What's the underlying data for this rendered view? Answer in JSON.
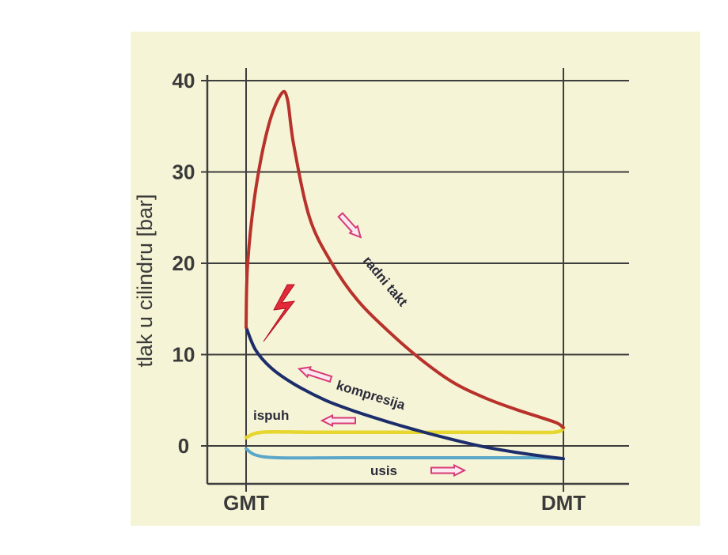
{
  "chart_data": {
    "type": "line",
    "ylabel": "tlak u cilindru [bar]",
    "ylim": [
      -4.5,
      41
    ],
    "yticks": [
      0,
      10,
      20,
      30,
      40
    ],
    "xtick_labels": [
      "GMT",
      "DMT"
    ],
    "grid": true,
    "series": [
      {
        "name": "radni takt",
        "color": "#b8322c",
        "x": [
          0.0,
          0.005,
          0.03,
          0.07,
          0.11,
          0.13,
          0.15,
          0.2,
          0.27,
          0.35,
          0.45,
          0.55,
          0.65,
          0.75,
          0.85,
          0.93,
          0.98,
          1.0
        ],
        "y": [
          13.0,
          20.0,
          28.0,
          35.0,
          38.5,
          38.0,
          33.0,
          25.0,
          20.0,
          16.0,
          12.5,
          9.5,
          7.0,
          5.3,
          4.0,
          3.1,
          2.5,
          2.0
        ]
      },
      {
        "name": "kompresija",
        "color": "#1c2d6b",
        "x": [
          0.0,
          0.03,
          0.08,
          0.15,
          0.25,
          0.35,
          0.45,
          0.55,
          0.65,
          0.75,
          0.85,
          0.93,
          1.0
        ],
        "y": [
          13.0,
          10.5,
          8.5,
          6.8,
          5.0,
          3.7,
          2.6,
          1.6,
          0.7,
          -0.1,
          -0.7,
          -1.1,
          -1.4
        ]
      },
      {
        "name": "ispuh",
        "color": "#e6d630",
        "x": [
          0.0,
          0.05,
          0.2,
          0.4,
          0.6,
          0.8,
          0.97,
          1.0
        ],
        "y": [
          0.9,
          1.5,
          1.5,
          1.5,
          1.5,
          1.5,
          1.5,
          2.0
        ]
      },
      {
        "name": "usis",
        "color": "#5aa7c9",
        "x": [
          0.0,
          0.03,
          0.1,
          0.3,
          0.5,
          0.7,
          0.9,
          1.0
        ],
        "y": [
          -0.3,
          -1.0,
          -1.3,
          -1.3,
          -1.3,
          -1.3,
          -1.3,
          -1.4
        ]
      }
    ]
  },
  "icons": {
    "ignition": "lightning-bolt-icon",
    "direction": "hollow-arrow-icon"
  }
}
